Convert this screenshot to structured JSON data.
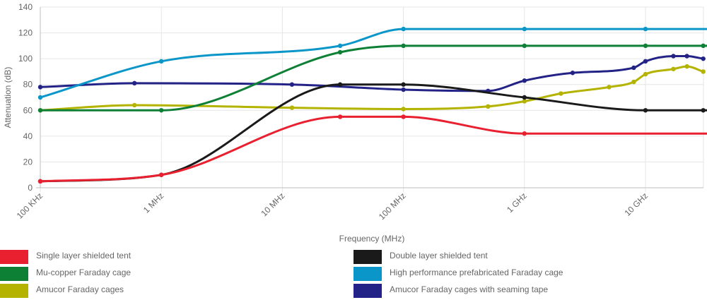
{
  "chart_data": {
    "type": "line",
    "xlabel": "Frequency (MHz)",
    "ylabel": "Attenuation (dB)",
    "ylim": [
      0,
      140
    ],
    "yticks": [
      "0",
      "20",
      "40",
      "60",
      "80",
      "100",
      "120",
      "140"
    ],
    "x_scale": "log",
    "xlim_mhz": [
      0.1,
      50000
    ],
    "xticks": [
      {
        "value": 0.1,
        "label": "100 KHz"
      },
      {
        "value": 1,
        "label": "1 MHz"
      },
      {
        "value": 10,
        "label": "10 MHz"
      },
      {
        "value": 100,
        "label": "100 MHz"
      },
      {
        "value": 1000,
        "label": "1 GHz"
      },
      {
        "value": 10000,
        "label": "10 GHz"
      }
    ],
    "grid": true,
    "legend_position": "bottom",
    "series": [
      {
        "name": "Single layer shielded tent",
        "color": "#e8202f",
        "points": [
          [
            0.1,
            5
          ],
          [
            1,
            10
          ],
          [
            30,
            55
          ],
          [
            100,
            55
          ],
          [
            1000,
            42
          ],
          [
            40000,
            42
          ]
        ]
      },
      {
        "name": "Double layer shielded tent",
        "color": "#1a1a1a",
        "points": [
          [
            0.1,
            5
          ],
          [
            1,
            10
          ],
          [
            30,
            80
          ],
          [
            100,
            80
          ],
          [
            1000,
            70
          ],
          [
            10000,
            60
          ],
          [
            30000,
            60
          ],
          [
            40000,
            60
          ]
        ]
      },
      {
        "name": "Mu-copper Faraday cage",
        "color": "#0e8036",
        "points": [
          [
            0.1,
            60
          ],
          [
            1,
            60
          ],
          [
            30,
            105
          ],
          [
            100,
            110
          ],
          [
            1000,
            110
          ],
          [
            10000,
            110
          ],
          [
            30000,
            110
          ],
          [
            40000,
            110
          ]
        ]
      },
      {
        "name": "High performance prefabricated Faraday cage",
        "color": "#0a96c8",
        "points": [
          [
            0.1,
            70
          ],
          [
            1,
            98
          ],
          [
            30,
            110
          ],
          [
            100,
            123
          ],
          [
            1000,
            123
          ],
          [
            10000,
            123
          ],
          [
            40000,
            123
          ]
        ]
      },
      {
        "name": "Amucor Faraday cages",
        "color": "#b3b300",
        "points": [
          [
            0.1,
            60
          ],
          [
            0.6,
            64
          ],
          [
            12,
            62
          ],
          [
            100,
            61
          ],
          [
            500,
            63
          ],
          [
            1000,
            67
          ],
          [
            2000,
            73
          ],
          [
            5000,
            78
          ],
          [
            8000,
            82
          ],
          [
            10000,
            88
          ],
          [
            17000,
            92
          ],
          [
            22000,
            94
          ],
          [
            30000,
            90
          ]
        ]
      },
      {
        "name": "Amucor Faraday cages with seaming tape",
        "color": "#232387",
        "points": [
          [
            0.1,
            78
          ],
          [
            0.6,
            81
          ],
          [
            12,
            80
          ],
          [
            100,
            76
          ],
          [
            500,
            75
          ],
          [
            1000,
            83
          ],
          [
            2500,
            89
          ],
          [
            8000,
            93
          ],
          [
            10000,
            98
          ],
          [
            17000,
            102
          ],
          [
            22000,
            102
          ],
          [
            30000,
            100
          ]
        ]
      }
    ]
  }
}
